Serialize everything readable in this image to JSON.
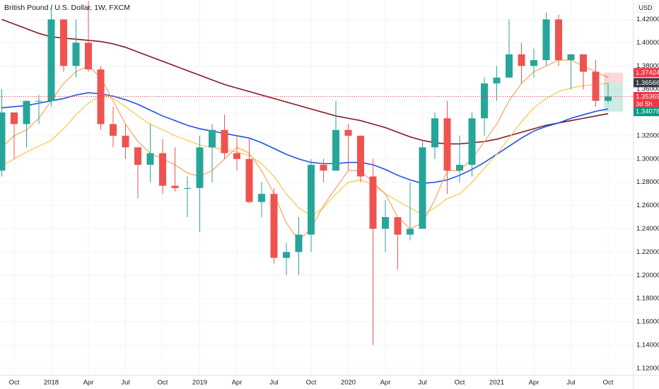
{
  "chart_data": {
    "type": "candlestick",
    "title": "British Pound / U.S. Dollar, 1W, FXCM",
    "axis_unit": "USD",
    "categories": [
      null,
      "Oct",
      null,
      null,
      "2018",
      null,
      null,
      "Apr",
      null,
      null,
      "Jul",
      null,
      null,
      "Oct",
      null,
      null,
      "2019",
      null,
      null,
      "Apr",
      null,
      null,
      "Jul",
      null,
      null,
      "Oct",
      null,
      null,
      "2020",
      null,
      null,
      "Apr",
      null,
      null,
      "Jul",
      null,
      null,
      "Oct",
      null,
      null,
      "2021",
      null,
      null,
      "Apr",
      null,
      null,
      "Jul",
      null,
      null,
      "Oct"
    ],
    "open": [
      1.29,
      1.34,
      1.33,
      1.35,
      1.35,
      1.42,
      1.38,
      1.4,
      1.377,
      1.33,
      1.32,
      1.31,
      1.295,
      1.305,
      1.277,
      1.275,
      1.275,
      1.31,
      1.325,
      1.305,
      1.3,
      1.263,
      1.27,
      1.215,
      1.22,
      1.235,
      1.295,
      1.29,
      1.325,
      1.32,
      1.285,
      1.24,
      1.25,
      1.235,
      1.24,
      1.31,
      1.335,
      1.29,
      1.295,
      1.335,
      1.365,
      1.37,
      1.39,
      1.38,
      1.385,
      1.42,
      1.385,
      1.39,
      1.375,
      1.35
    ],
    "high": [
      1.36,
      1.34,
      1.35,
      1.355,
      1.43,
      1.42,
      1.42,
      1.436,
      1.38,
      1.345,
      1.33,
      1.31,
      1.33,
      1.317,
      1.31,
      1.285,
      1.32,
      1.33,
      1.338,
      1.32,
      1.318,
      1.28,
      1.275,
      1.228,
      1.25,
      1.3,
      1.3,
      1.35,
      1.33,
      1.32,
      1.3,
      1.265,
      1.25,
      1.28,
      1.315,
      1.34,
      1.35,
      1.32,
      1.34,
      1.37,
      1.38,
      1.42,
      1.4,
      1.395,
      1.426,
      1.424,
      1.39,
      1.39,
      1.385,
      1.365
    ],
    "low": [
      1.285,
      1.3,
      1.31,
      1.33,
      1.345,
      1.375,
      1.37,
      1.375,
      1.325,
      1.31,
      1.3,
      1.266,
      1.28,
      1.27,
      1.272,
      1.25,
      1.237,
      1.28,
      1.3,
      1.29,
      1.262,
      1.25,
      1.21,
      1.2,
      1.2,
      1.22,
      1.28,
      1.29,
      1.29,
      1.28,
      1.14,
      1.22,
      1.205,
      1.23,
      1.24,
      1.3,
      1.27,
      1.28,
      1.285,
      1.32,
      1.35,
      1.37,
      1.365,
      1.37,
      1.38,
      1.38,
      1.36,
      1.36,
      1.345,
      1.348
    ],
    "close": [
      1.34,
      1.33,
      1.35,
      1.35,
      1.42,
      1.38,
      1.4,
      1.377,
      1.33,
      1.32,
      1.31,
      1.295,
      1.305,
      1.277,
      1.275,
      1.275,
      1.31,
      1.325,
      1.305,
      1.3,
      1.263,
      1.27,
      1.215,
      1.22,
      1.235,
      1.295,
      1.29,
      1.325,
      1.32,
      1.285,
      1.24,
      1.25,
      1.235,
      1.24,
      1.31,
      1.335,
      1.29,
      1.295,
      1.335,
      1.365,
      1.37,
      1.39,
      1.38,
      1.385,
      1.42,
      1.385,
      1.39,
      1.375,
      1.35,
      1.35369
    ],
    "up_color": "#26a69a",
    "down_color": "#ef5350",
    "lines": [
      {
        "color": "#801922",
        "values": [
          1.42,
          1.416,
          1.412,
          1.408,
          1.405,
          1.404,
          1.403,
          1.402,
          1.401,
          1.399,
          1.396,
          1.392,
          1.388,
          1.384,
          1.38,
          1.376,
          1.372,
          1.368,
          1.364,
          1.361,
          1.358,
          1.355,
          1.352,
          1.349,
          1.346,
          1.343,
          1.34,
          1.337,
          1.335,
          1.333,
          1.33,
          1.327,
          1.323,
          1.319,
          1.316,
          1.314,
          1.313,
          1.313,
          1.314,
          1.315,
          1.317,
          1.32,
          1.323,
          1.326,
          1.329,
          1.331,
          1.333,
          1.335,
          1.337,
          1.339
        ]
      },
      {
        "color": "#1e53e5",
        "values": [
          1.344,
          1.345,
          1.346,
          1.348,
          1.35,
          1.352,
          1.355,
          1.357,
          1.356,
          1.354,
          1.351,
          1.347,
          1.342,
          1.337,
          1.333,
          1.329,
          1.326,
          1.324,
          1.322,
          1.32,
          1.318,
          1.314,
          1.309,
          1.304,
          1.3,
          1.297,
          1.296,
          1.296,
          1.297,
          1.297,
          1.295,
          1.291,
          1.286,
          1.282,
          1.279,
          1.28,
          1.282,
          1.286,
          1.291,
          1.297,
          1.304,
          1.311,
          1.318,
          1.324,
          1.328,
          1.331,
          1.335,
          1.338,
          1.341,
          1.343
        ]
      },
      {
        "color": "#f5c84c",
        "values": [
          1.294,
          1.3,
          1.306,
          1.311,
          1.316,
          1.326,
          1.338,
          1.348,
          1.355,
          1.352,
          1.345,
          1.337,
          1.33,
          1.325,
          1.32,
          1.316,
          1.312,
          1.31,
          1.308,
          1.306,
          1.303,
          1.296,
          1.285,
          1.27,
          1.258,
          1.251,
          1.258,
          1.27,
          1.28,
          1.282,
          1.278,
          1.27,
          1.264,
          1.258,
          1.252,
          1.258,
          1.266,
          1.27,
          1.28,
          1.292,
          1.304,
          1.318,
          1.332,
          1.344,
          1.352,
          1.358,
          1.361,
          1.363,
          1.364,
          1.365
        ]
      },
      {
        "color": "#f4a460",
        "values": [
          1.31,
          1.32,
          1.325,
          1.335,
          1.35,
          1.365,
          1.375,
          1.38,
          1.37,
          1.35,
          1.33,
          1.315,
          1.305,
          1.3,
          1.295,
          1.288,
          1.285,
          1.29,
          1.3,
          1.31,
          1.305,
          1.29,
          1.27,
          1.245,
          1.23,
          1.24,
          1.26,
          1.275,
          1.29,
          1.29,
          1.28,
          1.27,
          1.25,
          1.24,
          1.245,
          1.265,
          1.29,
          1.29,
          1.3,
          1.315,
          1.33,
          1.35,
          1.365,
          1.375,
          1.38,
          1.385,
          1.385,
          1.38,
          1.375,
          1.37
        ]
      }
    ],
    "ylim": [
      1.1144,
      1.4367
    ],
    "yticks": [
      {
        "value": 1.12,
        "label": "1.12000"
      },
      {
        "value": 1.14,
        "label": "1.14000"
      },
      {
        "value": 1.16,
        "label": "1.16000"
      },
      {
        "value": 1.18,
        "label": "1.18000"
      },
      {
        "value": 1.2,
        "label": "1.20000"
      },
      {
        "value": 1.22,
        "label": "1.22000"
      },
      {
        "value": 1.24,
        "label": "1.24000"
      },
      {
        "value": 1.26,
        "label": "1.26000"
      },
      {
        "value": 1.28,
        "label": "1.28000"
      },
      {
        "value": 1.3,
        "label": "1.30000"
      },
      {
        "value": 1.32,
        "label": "1.32000"
      },
      {
        "value": 1.34,
        "label": "1.34000"
      },
      {
        "value": 1.36,
        "label": "1.36000"
      },
      {
        "value": 1.38,
        "label": "1.38000"
      },
      {
        "value": 1.4,
        "label": "1.40000"
      },
      {
        "value": 1.42,
        "label": "1.42000"
      }
    ],
    "grid": true,
    "position": {
      "stop": {
        "value": 1.37424,
        "label": "1.37424",
        "color": "#f23645"
      },
      "entry": {
        "value": 1.36566,
        "label": "1.36566",
        "color": "#363a45"
      },
      "target": {
        "value": 1.34078,
        "label": "1.34078",
        "color": "#089981"
      }
    },
    "last_price": {
      "value": 1.35369,
      "label": "1.35369",
      "countdown": "3d 5h",
      "color": "#f23645"
    }
  }
}
